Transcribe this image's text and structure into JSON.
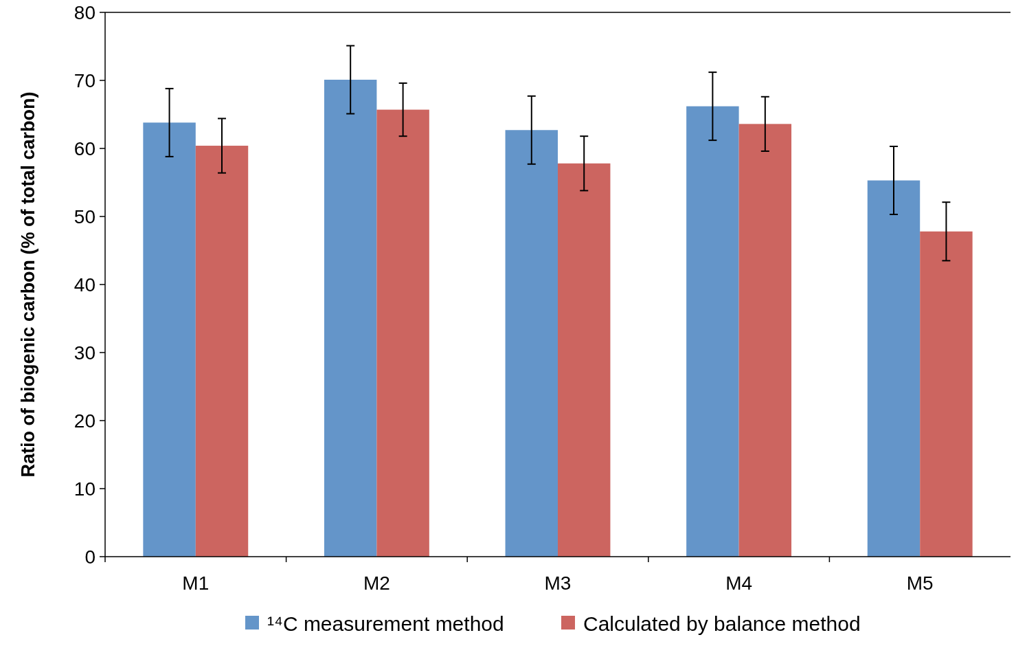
{
  "chart_data": {
    "type": "bar",
    "ylabel": "Ratio of biogenic carbon (% of total carbon)",
    "categories": [
      "M1",
      "M2",
      "M3",
      "M4",
      "M5"
    ],
    "series": [
      {
        "name": "¹⁴C measurement method",
        "color": "#6495c9",
        "values": [
          63.8,
          70.1,
          62.7,
          66.2,
          55.3
        ],
        "errors": [
          5,
          5,
          5,
          5,
          5
        ]
      },
      {
        "name": "Calculated by balance method",
        "color": "#cc6560",
        "values": [
          60.4,
          65.7,
          57.8,
          63.6,
          47.8
        ],
        "errors": [
          4,
          3.9,
          4,
          4,
          4.3
        ]
      }
    ],
    "ylim": [
      0,
      80
    ],
    "yticks": [
      0,
      10,
      20,
      30,
      40,
      50,
      60,
      70,
      80
    ],
    "grid": false,
    "legend": "bottom"
  }
}
